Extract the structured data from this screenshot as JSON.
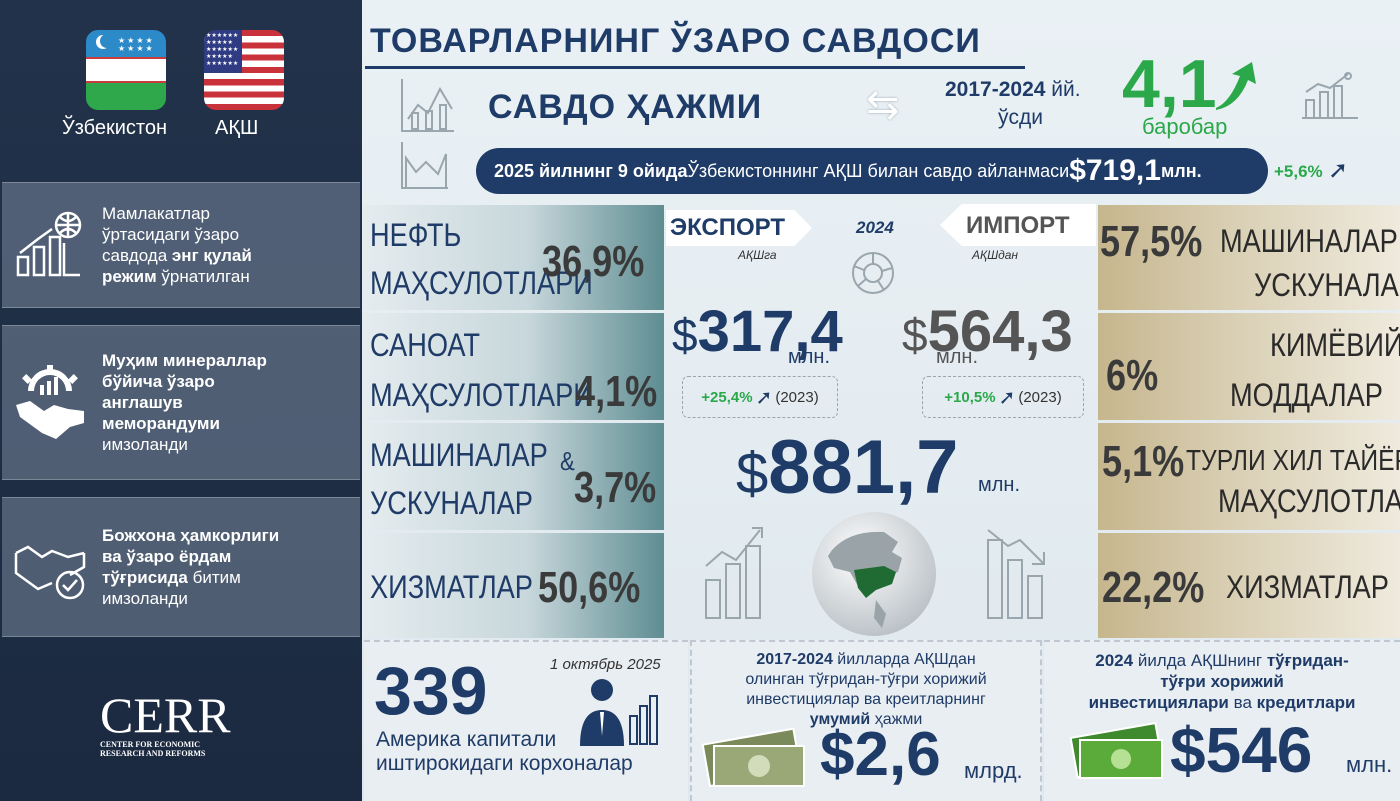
{
  "sidebar": {
    "flags": [
      {
        "name": "Ўзбекистон"
      },
      {
        "name": "АҚШ"
      }
    ],
    "boxes": [
      {
        "line1": "Мамлакатлар",
        "line2": "ўртасидаги ўзаро",
        "line3a": "савдода ",
        "line3b": "энг қулай",
        "line4a": "режим",
        "line4b": " ўрнатилган"
      },
      {
        "line1": "Муҳим минераллар",
        "line2": "бўйича ўзаро",
        "line3": "англашув",
        "line4": "меморандуми",
        "line5": "имзоланди"
      },
      {
        "line1": "Божхона ҳамкорлиги",
        "line2": "ва ўзаро ёрдам",
        "line3a": "тўғрисида",
        "line3b": " битим",
        "line4": "имзоланди"
      }
    ],
    "logo": {
      "name": "CERR",
      "sub1": "CENTER FOR ECONOMIC",
      "sub2": "RESEARCH AND REFORMS"
    }
  },
  "header": {
    "title": "ТОВАРЛАРНИНГ ЎЗАРО САВДОСИ",
    "volume_label": "САВДО ҲАЖМИ",
    "period": "2017-2024",
    "period_unit": " йй.",
    "growth_label": "ўсди",
    "growth_value": "4,1",
    "growth_unit": "баробар",
    "banner_bold": "2025 йилнинг 9 ойида",
    "banner_text": " Ўзбекистоннинг АҚШ билан савдо айланмаси ",
    "banner_value": "$719,1",
    "banner_unit": " млн.",
    "banner_change": "+5,6%"
  },
  "export": {
    "label": "ЭКСПОРТ",
    "sub": "АҚШга",
    "year": "2024",
    "value": "317,4",
    "unit": "млн.",
    "change": "+25,4%",
    "change_year": "(2023)",
    "items": [
      {
        "label1": "НЕФТЬ",
        "label2": "МАҲСУЛОТЛАРИ",
        "value": "36,9%"
      },
      {
        "label1": "САНОАТ",
        "label2": "МАҲСУЛОТЛАРИ",
        "value": "4,1%"
      },
      {
        "label1": "МАШИНАЛАР",
        "amp": "&",
        "label2": "УСКУНАЛАР",
        "value": "3,7%"
      },
      {
        "label1": "ХИЗМАТЛАР",
        "value": "50,6%"
      }
    ]
  },
  "import": {
    "label": "ИМПОРТ",
    "sub": "АҚШдан",
    "value": "564,3",
    "unit": "млн.",
    "change": "+10,5%",
    "change_year": "(2023)",
    "items": [
      {
        "value": "57,5%",
        "label1": "МАШИНАЛАР &",
        "label2": "УСКУНАЛАР"
      },
      {
        "value": "6%",
        "label1": "КИМЁВИЙ",
        "label2": "МОДДАЛАР"
      },
      {
        "value": "5,1%",
        "label1": "ТУРЛИ ХИЛ ТАЙЁР",
        "label2": "МАҲСУЛОТЛАР"
      },
      {
        "value": "22,2%",
        "label1": "ХИЗМАТЛАР"
      }
    ]
  },
  "total": {
    "currency": "$",
    "value": "881,7",
    "unit": "млн."
  },
  "bottom": {
    "companies": {
      "count": "339",
      "date": "1 октябрь 2025",
      "line1": "Америка капитали",
      "line2": "иштирокидаги корхоналар"
    },
    "investments": {
      "period": "2017-2024",
      "l1": " йилларда АҚШдан",
      "l2": "олинган тўғридан-тўғри хорижий",
      "l3": "инвестициялар ва креитларнинг",
      "l4a": "умумий",
      "l4b": " ҳажми",
      "value": "$2,6",
      "unit": "млрд."
    },
    "fdi": {
      "year": "2024",
      "l1a": " йилда АҚШнинг ",
      "l1b": "тўғридан-",
      "l2": "тўғри хорижий",
      "l3a": "инвестициялари",
      "l3b": " ва ",
      "l3c": "кредитлари",
      "value": "$546",
      "unit": "млн."
    }
  },
  "colors": {
    "navy": "#1f3b67",
    "green": "#2aa84a",
    "sidebar": "#22324a"
  }
}
